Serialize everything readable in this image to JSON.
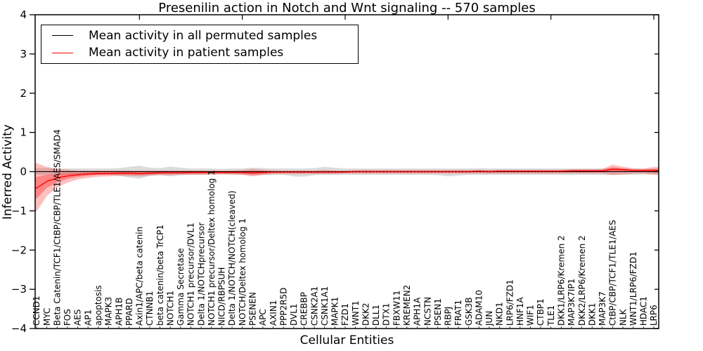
{
  "title": "Presenilin action in Notch and Wnt signaling -- 570 samples",
  "axes": {
    "xlabel": "Cellular Entities",
    "ylabel": "Inferred Activity"
  },
  "legend": {
    "items": [
      {
        "label": "Mean activity in all permuted samples",
        "color": "#000000"
      },
      {
        "label": "Mean activity in patient samples",
        "color": "#ff0000"
      }
    ]
  },
  "colors": {
    "permuted_line": "#000000",
    "patient_line": "#ff0000",
    "patient_band": "#ff0000",
    "permuted_band": "#999999",
    "axis": "#000000",
    "background": "#ffffff"
  },
  "chart_data": {
    "type": "line",
    "title": "Presenilin action in Notch and Wnt signaling -- 570 samples",
    "xlabel": "Cellular Entities",
    "ylabel": "Inferred Activity",
    "ylim": [
      -4,
      4
    ],
    "yticks": [
      4,
      3,
      2,
      1,
      0,
      -1,
      -2,
      -3,
      -4
    ],
    "grid": false,
    "legend_position": "upper left",
    "categories": [
      "CCND1",
      "MYC",
      "Beta Catenin/TCF1/CtBP/CBP/TLE1/AES/SMAD4",
      "FOS",
      "AES",
      "AP1",
      "apoptosis",
      "MAPK3",
      "APH1B",
      "PPARD",
      "Axin1/APC/beta catenin",
      "CTNNB1",
      "beta catenin/beta TrCP1",
      "NOTCH1",
      "Gamma Secretase",
      "NOTCH1 precursor/DVL1",
      "Delta 1/NOTCHprecursor",
      "NOTCH1 precursor/Deltex homolog 1",
      "NICD/RBPSUH",
      "Delta 1/NOTCH/NOTCH(cleaved)",
      "NOTCH/Deltex homolog 1",
      "PSENEN",
      "APC",
      "AXIN1",
      "PPP2R5D",
      "DVL1",
      "CREBBP",
      "CSNK2A1",
      "CSNK1A1",
      "MAPK1",
      "FZD1",
      "WNT1",
      "DKK2",
      "DLL1",
      "DTX1",
      "FBXW11",
      "KREMEN2",
      "APH1A",
      "NCSTN",
      "PSEN1",
      "RBPJ",
      "FRAT1",
      "GSK3B",
      "ADAM10",
      "JUN",
      "NKD1",
      "LRP6/FZD1",
      "HNF1A",
      "WIF1",
      "CTBP1",
      "TLE1",
      "DKK1/LRP6/Kremen 2",
      "MAP3K7IP1",
      "DKK2/LRP6/Kremen 2",
      "DKK1",
      "MAP3K7",
      "CtBP/CBP/TCF1/TLE1/AES",
      "NLK",
      "WNT1/LRP6/FZD1",
      "HDAC1",
      "LRP6"
    ],
    "series": [
      {
        "name": "Mean activity in all permuted samples",
        "color": "#000000",
        "values": [
          0,
          0,
          0,
          0,
          0,
          0,
          0,
          0,
          0,
          0,
          0,
          0,
          0,
          0,
          0,
          0,
          0,
          0,
          0,
          0,
          0,
          0,
          0,
          0,
          0,
          0,
          0,
          0,
          0,
          0,
          0,
          0,
          0,
          0,
          0,
          0,
          0,
          0,
          0,
          0,
          0,
          0,
          0,
          0,
          0,
          0,
          0,
          0,
          0,
          0,
          0,
          0,
          0,
          0,
          0,
          0,
          0,
          0,
          0,
          0,
          0
        ],
        "band_upper": [
          0.09,
          0.09,
          0.08,
          0.08,
          0.08,
          0.08,
          0.08,
          0.08,
          0.09,
          0.12,
          0.15,
          0.1,
          0.09,
          0.13,
          0.1,
          0.08,
          0.08,
          0.08,
          0.07,
          0.08,
          0.08,
          0.1,
          0.09,
          0.08,
          0.08,
          0.08,
          0.08,
          0.09,
          0.12,
          0.1,
          0.08,
          0.08,
          0.08,
          0.08,
          0.08,
          0.08,
          0.08,
          0.08,
          0.08,
          0.08,
          0.08,
          0.08,
          0.08,
          0.09,
          0.08,
          0.08,
          0.08,
          0.08,
          0.08,
          0.08,
          0.08,
          0.08,
          0.08,
          0.08,
          0.08,
          0.08,
          0.09,
          0.08,
          0.08,
          0.07,
          0.07
        ],
        "band_lower": [
          -0.09,
          -0.09,
          -0.08,
          -0.08,
          -0.08,
          -0.08,
          -0.08,
          -0.08,
          -0.1,
          -0.15,
          -0.18,
          -0.11,
          -0.09,
          -0.12,
          -0.09,
          -0.08,
          -0.08,
          -0.08,
          -0.07,
          -0.08,
          -0.08,
          -0.09,
          -0.08,
          -0.08,
          -0.08,
          -0.12,
          -0.13,
          -0.09,
          -0.08,
          -0.08,
          -0.08,
          -0.08,
          -0.08,
          -0.08,
          -0.08,
          -0.08,
          -0.08,
          -0.08,
          -0.08,
          -0.09,
          -0.12,
          -0.1,
          -0.08,
          -0.08,
          -0.08,
          -0.08,
          -0.08,
          -0.08,
          -0.08,
          -0.08,
          -0.08,
          -0.08,
          -0.08,
          -0.08,
          -0.08,
          -0.08,
          -0.08,
          -0.08,
          -0.08,
          -0.07,
          -0.07
        ]
      },
      {
        "name": "Mean activity in patient samples",
        "color": "#ff0000",
        "values": [
          -0.42,
          -0.25,
          -0.16,
          -0.11,
          -0.08,
          -0.06,
          -0.05,
          -0.05,
          -0.04,
          -0.04,
          -0.05,
          -0.04,
          -0.03,
          -0.03,
          -0.03,
          -0.02,
          -0.02,
          -0.02,
          -0.02,
          -0.02,
          -0.02,
          -0.03,
          -0.02,
          -0.01,
          -0.01,
          -0.01,
          -0.01,
          -0.01,
          -0.01,
          -0.01,
          -0.01,
          0,
          0,
          0,
          0,
          0,
          0,
          0,
          0,
          0,
          0,
          0,
          0,
          0.01,
          0,
          0.01,
          0.01,
          0.01,
          0.01,
          0.01,
          0.01,
          0.01,
          0.02,
          0.02,
          0.02,
          0.02,
          0.06,
          0.05,
          0.03,
          0.03,
          0.03
        ],
        "band_upper": [
          0.22,
          0.12,
          0.07,
          0.05,
          0.03,
          0.03,
          0.03,
          0.03,
          0.03,
          0.03,
          0.03,
          0.03,
          0.03,
          0.03,
          0.03,
          0.03,
          0.03,
          0.03,
          0.03,
          0.03,
          0.04,
          0.07,
          0.05,
          0.03,
          0.03,
          0.03,
          0.03,
          0.03,
          0.04,
          0.03,
          0.03,
          0.04,
          0.04,
          0.04,
          0.04,
          0.04,
          0.04,
          0.04,
          0.04,
          0.04,
          0.04,
          0.04,
          0.04,
          0.05,
          0.04,
          0.05,
          0.05,
          0.05,
          0.05,
          0.05,
          0.05,
          0.05,
          0.06,
          0.06,
          0.06,
          0.07,
          0.18,
          0.13,
          0.08,
          0.08,
          0.12
        ],
        "band_lower": [
          -1.02,
          -0.62,
          -0.4,
          -0.28,
          -0.2,
          -0.16,
          -0.13,
          -0.12,
          -0.11,
          -0.11,
          -0.12,
          -0.1,
          -0.09,
          -0.09,
          -0.08,
          -0.08,
          -0.08,
          -0.07,
          -0.07,
          -0.07,
          -0.08,
          -0.12,
          -0.09,
          -0.06,
          -0.06,
          -0.06,
          -0.06,
          -0.06,
          -0.06,
          -0.06,
          -0.05,
          -0.05,
          -0.05,
          -0.05,
          -0.05,
          -0.05,
          -0.05,
          -0.05,
          -0.05,
          -0.05,
          -0.05,
          -0.05,
          -0.05,
          -0.05,
          -0.05,
          -0.05,
          -0.05,
          -0.05,
          -0.05,
          -0.05,
          -0.05,
          -0.05,
          -0.05,
          -0.05,
          -0.05,
          -0.05,
          -0.09,
          -0.07,
          -0.05,
          -0.05,
          -0.08
        ]
      }
    ]
  }
}
